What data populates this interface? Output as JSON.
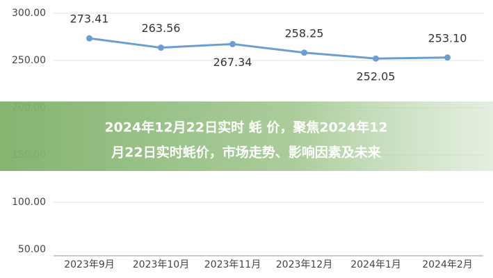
{
  "chart_data": {
    "type": "line",
    "title": [
      "2024年12月22日实时 蚝 价，聚焦2024年12",
      "月22日实时蚝价，市场走势、影响因素及未来"
    ],
    "categories": [
      "2023年9月",
      "2023年10月",
      "2023年11月",
      "2023年12月",
      "2024年1月",
      "2024年2月"
    ],
    "values": [
      273.41,
      263.56,
      267.34,
      258.25,
      252.05,
      253.1
    ],
    "value_labels": [
      "273.41",
      "263.56",
      "267.34",
      "258.25",
      "252.05",
      "253.10"
    ],
    "color": "#6c9fcf",
    "ylim": [
      50,
      300
    ],
    "yticks": [
      {
        "value": 50,
        "label": "50.00"
      },
      {
        "value": 100,
        "label": "100.00"
      },
      {
        "value": 150,
        "label": "150.00"
      },
      {
        "value": 200,
        "label": "200.00"
      },
      {
        "value": 250,
        "label": "250.00"
      },
      {
        "value": 300,
        "label": "300.00"
      }
    ],
    "grid": true
  }
}
